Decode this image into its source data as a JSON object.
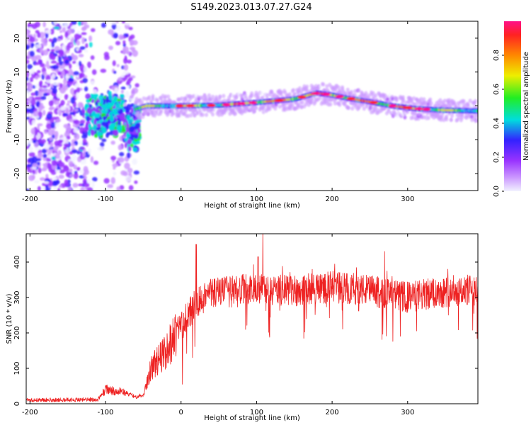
{
  "title": "S149.2023.013.07.27.G24",
  "colors": {
    "snr_line": "#ee2222",
    "frame": "#000000",
    "colormap": [
      "#f2f2ff",
      "#cc99ff",
      "#9933ff",
      "#3322ff",
      "#00dddd",
      "#22ee22",
      "#eeee00",
      "#ff8800",
      "#ff2222",
      "#ff1188"
    ]
  },
  "chart_data": [
    {
      "type": "heatmap",
      "name": "spectrogram",
      "xlabel": "Height of straight line (km)",
      "ylabel": "Frequency (Hz)",
      "xlim": [
        -205,
        393
      ],
      "ylim": [
        -25,
        25
      ],
      "xticks": [
        -200,
        -100,
        0,
        100,
        200,
        300
      ],
      "xtick_labels": [
        "-200",
        "-100",
        "0",
        "100",
        "200",
        "300"
      ],
      "yticks": [
        -20,
        -10,
        0,
        10,
        20
      ],
      "ytick_labels": [
        "-20",
        "-10",
        "0",
        "10",
        "20"
      ],
      "colorbar": {
        "label": "Normalized spectral amplitude",
        "range": [
          0,
          1
        ],
        "ticks": [
          0.0,
          0.2,
          0.4,
          0.6,
          0.8
        ],
        "tick_labels": [
          "0.0",
          "0.2",
          "0.4",
          "0.6",
          "0.8"
        ]
      },
      "ridge": {
        "x": [
          -60,
          -45,
          -30,
          0,
          50,
          100,
          150,
          180,
          200,
          220,
          250,
          280,
          310,
          340,
          393
        ],
        "y": [
          -1,
          0,
          0,
          0,
          0.2,
          1.0,
          2.0,
          3.8,
          3.2,
          2.3,
          1.2,
          0,
          -0.8,
          -1.2,
          -1.5
        ]
      },
      "noise_region": {
        "x_start": -205,
        "x_end": -58,
        "freq_min": -25,
        "freq_max": 25
      }
    },
    {
      "type": "line",
      "name": "snr",
      "xlabel": "Height of straight line (km)",
      "ylabel": "SNR (10 * v/v)",
      "xlim": [
        -205,
        393
      ],
      "ylim": [
        0,
        480
      ],
      "xticks": [
        -200,
        -100,
        0,
        100,
        200,
        300
      ],
      "xtick_labels": [
        "-200",
        "-100",
        "0",
        "100",
        "200",
        "300"
      ],
      "yticks": [
        0,
        100,
        200,
        300,
        400
      ],
      "ytick_labels": [
        "0",
        "100",
        "200",
        "300",
        "400"
      ],
      "envelope": {
        "x": [
          -205,
          -110,
          -100,
          -80,
          -60,
          -50,
          -40,
          -20,
          0,
          20,
          40,
          60,
          80,
          100,
          120,
          150,
          200,
          250,
          270,
          300,
          330,
          360,
          393
        ],
        "y": [
          10,
          12,
          40,
          35,
          20,
          25,
          100,
          150,
          220,
          285,
          315,
          315,
          320,
          325,
          320,
          320,
          330,
          320,
          310,
          300,
          310,
          320,
          320
        ]
      },
      "spikes": [
        {
          "x": 108,
          "y": 480
        },
        {
          "x": 102,
          "y": 415
        },
        {
          "x": 117,
          "y": 195
        },
        {
          "x": 105,
          "y": 160
        },
        {
          "x": 2,
          "y": 55
        },
        {
          "x": 245,
          "y": 200
        },
        {
          "x": 270,
          "y": 430
        },
        {
          "x": 353,
          "y": 380
        },
        {
          "x": 20,
          "y": 450
        }
      ]
    }
  ]
}
